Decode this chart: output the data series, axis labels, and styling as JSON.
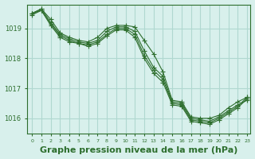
{
  "background_color": "#d8f0ec",
  "grid_color": "#b0d8d0",
  "line_color": "#2d6e2d",
  "marker_color": "#2d6e2d",
  "xlabel": "Graphe pression niveau de la mer (hPa)",
  "xlabel_fontsize": 8,
  "xlim": [
    -0.5,
    23.3
  ],
  "ylim": [
    1015.5,
    1019.8
  ],
  "yticks": [
    1016,
    1017,
    1018,
    1019
  ],
  "xticks": [
    0,
    1,
    2,
    3,
    4,
    5,
    6,
    7,
    8,
    9,
    10,
    11,
    12,
    13,
    14,
    15,
    16,
    17,
    18,
    19,
    20,
    21,
    22,
    23
  ],
  "series": [
    {
      "x": [
        0,
        1,
        2,
        3,
        4,
        5,
        6,
        7,
        8,
        9,
        10,
        11,
        12,
        13,
        14,
        15,
        16,
        17,
        18,
        19,
        20,
        21,
        22,
        23
      ],
      "y": [
        1019.5,
        1019.65,
        1019.3,
        1018.85,
        1018.7,
        1018.6,
        1018.55,
        1018.7,
        1019.0,
        1019.1,
        1019.1,
        1019.05,
        1018.6,
        1018.15,
        1017.55,
        1016.6,
        1016.55,
        1016.05,
        1016.0,
        1016.0,
        1016.1,
        1016.35,
        1016.55,
        1016.7
      ]
    },
    {
      "x": [
        0,
        1,
        2,
        3,
        4,
        5,
        6,
        7,
        8,
        9,
        10,
        11,
        12,
        13,
        14,
        15,
        16,
        17,
        18,
        19,
        20,
        21,
        22,
        23
      ],
      "y": [
        1019.5,
        1019.65,
        1019.2,
        1018.8,
        1018.65,
        1018.55,
        1018.5,
        1018.6,
        1018.9,
        1019.05,
        1019.05,
        1018.9,
        1018.25,
        1017.7,
        1017.4,
        1016.55,
        1016.5,
        1016.0,
        1015.95,
        1015.9,
        1016.05,
        1016.25,
        1016.45,
        1016.6
      ]
    },
    {
      "x": [
        0,
        1,
        2,
        3,
        4,
        5,
        6,
        7,
        8,
        9,
        10,
        11,
        12,
        13,
        14,
        15,
        16,
        17,
        18,
        19,
        20,
        21,
        22,
        23
      ],
      "y": [
        1019.45,
        1019.6,
        1019.15,
        1018.75,
        1018.6,
        1018.5,
        1018.45,
        1018.55,
        1018.8,
        1019.0,
        1019.0,
        1018.8,
        1018.1,
        1017.6,
        1017.3,
        1016.5,
        1016.45,
        1015.95,
        1015.9,
        1015.85,
        1016.0,
        1016.2,
        1016.4,
        1016.7
      ]
    },
    {
      "x": [
        0,
        1,
        2,
        3,
        4,
        5,
        6,
        7,
        8,
        9,
        10,
        11,
        12,
        13,
        14,
        15,
        16,
        17,
        18,
        19,
        20,
        21,
        22,
        23
      ],
      "y": [
        1019.5,
        1019.6,
        1019.1,
        1018.7,
        1018.55,
        1018.5,
        1018.4,
        1018.5,
        1018.75,
        1018.95,
        1018.95,
        1018.7,
        1018.0,
        1017.5,
        1017.2,
        1016.45,
        1016.4,
        1015.9,
        1015.85,
        1015.8,
        1015.95,
        1016.15,
        1016.35,
        1016.65
      ]
    }
  ]
}
